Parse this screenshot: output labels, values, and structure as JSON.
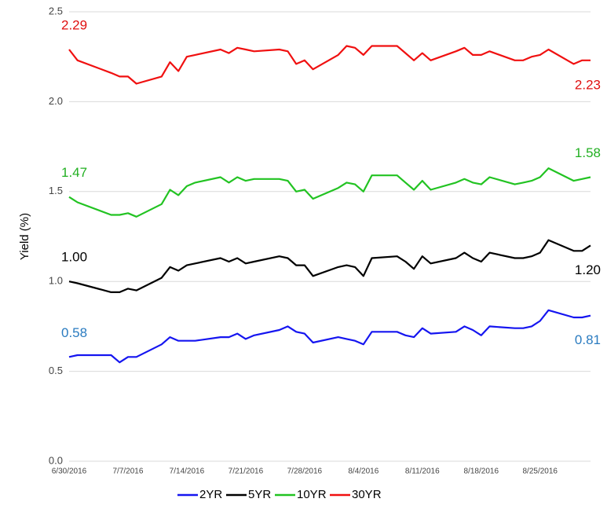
{
  "chart_data": {
    "type": "line",
    "y_label": "Yield (%)",
    "x": [
      "6/30/2016",
      "7/1/2016",
      "7/5/2016",
      "7/6/2016",
      "7/7/2016",
      "7/8/2016",
      "7/11/2016",
      "7/12/2016",
      "7/13/2016",
      "7/14/2016",
      "7/15/2016",
      "7/18/2016",
      "7/19/2016",
      "7/20/2016",
      "7/21/2016",
      "7/22/2016",
      "7/25/2016",
      "7/26/2016",
      "7/27/2016",
      "7/28/2016",
      "7/29/2016",
      "8/1/2016",
      "8/2/2016",
      "8/3/2016",
      "8/4/2016",
      "8/5/2016",
      "8/8/2016",
      "8/9/2016",
      "8/10/2016",
      "8/11/2016",
      "8/12/2016",
      "8/15/2016",
      "8/16/2016",
      "8/17/2016",
      "8/18/2016",
      "8/19/2016",
      "8/22/2016",
      "8/23/2016",
      "8/24/2016",
      "8/25/2016",
      "8/26/2016",
      "8/29/2016",
      "8/30/2016",
      "8/31/2016"
    ],
    "xlim": [
      "6/30/2016",
      "8/31/2016"
    ],
    "xticks": [
      "6/30/2016",
      "7/7/2016",
      "7/14/2016",
      "7/21/2016",
      "7/28/2016",
      "8/4/2016",
      "8/11/2016",
      "8/18/2016",
      "8/25/2016"
    ],
    "ylim": [
      0,
      2.5
    ],
    "yticks": [
      {
        "value": 0,
        "label": "0.0"
      },
      {
        "value": 0.5,
        "label": "0.5"
      },
      {
        "value": 1,
        "label": "1.0"
      },
      {
        "value": 1.5,
        "label": "1.5"
      },
      {
        "value": 2,
        "label": "2.0"
      },
      {
        "value": 2.5,
        "label": "2.5"
      }
    ],
    "grid": true,
    "legend": "bottom",
    "series": [
      {
        "name": "2YR",
        "color": "#1515f0",
        "label_color": "#2a7bc0",
        "values": [
          0.58,
          0.59,
          0.59,
          0.55,
          0.58,
          0.58,
          0.65,
          0.69,
          0.67,
          0.67,
          0.67,
          0.69,
          0.69,
          0.71,
          0.68,
          0.7,
          0.73,
          0.75,
          0.72,
          0.71,
          0.66,
          0.69,
          0.68,
          0.67,
          0.65,
          0.72,
          0.72,
          0.7,
          0.69,
          0.74,
          0.71,
          0.72,
          0.75,
          0.73,
          0.7,
          0.75,
          0.74,
          0.74,
          0.75,
          0.78,
          0.84,
          0.8,
          0.8,
          0.81
        ],
        "value_labels": [
          "0.58",
          null,
          null,
          null,
          null,
          null,
          null,
          null,
          null,
          null,
          null,
          null,
          null,
          null,
          null,
          null,
          null,
          null,
          null,
          null,
          null,
          null,
          null,
          null,
          null,
          null,
          null,
          null,
          null,
          null,
          null,
          null,
          null,
          null,
          null,
          null,
          null,
          null,
          null,
          null,
          null,
          null,
          null,
          "0.81"
        ]
      },
      {
        "name": "5YR",
        "color": "#000000",
        "label_color": "#000000",
        "values": [
          1.0,
          0.99,
          0.94,
          0.94,
          0.96,
          0.95,
          1.02,
          1.08,
          1.06,
          1.09,
          1.1,
          1.13,
          1.11,
          1.13,
          1.1,
          1.11,
          1.14,
          1.13,
          1.09,
          1.09,
          1.03,
          1.08,
          1.09,
          1.08,
          1.03,
          1.13,
          1.14,
          1.11,
          1.07,
          1.14,
          1.1,
          1.13,
          1.16,
          1.13,
          1.11,
          1.16,
          1.13,
          1.13,
          1.14,
          1.16,
          1.23,
          1.17,
          1.17,
          1.2
        ],
        "value_labels": [
          "1.00",
          null,
          null,
          null,
          null,
          null,
          null,
          null,
          null,
          null,
          null,
          null,
          null,
          null,
          null,
          null,
          null,
          null,
          null,
          null,
          null,
          null,
          null,
          null,
          null,
          null,
          null,
          null,
          null,
          null,
          null,
          null,
          null,
          null,
          null,
          null,
          null,
          null,
          null,
          null,
          null,
          null,
          null,
          "1.20"
        ]
      },
      {
        "name": "10YR",
        "color": "#22c322",
        "label_color": "#22b022",
        "values": [
          1.47,
          1.44,
          1.37,
          1.37,
          1.38,
          1.36,
          1.43,
          1.51,
          1.48,
          1.53,
          1.55,
          1.58,
          1.55,
          1.58,
          1.56,
          1.57,
          1.57,
          1.56,
          1.5,
          1.51,
          1.46,
          1.52,
          1.55,
          1.54,
          1.5,
          1.59,
          1.59,
          1.55,
          1.51,
          1.56,
          1.51,
          1.55,
          1.57,
          1.55,
          1.54,
          1.58,
          1.54,
          1.55,
          1.56,
          1.58,
          1.63,
          1.56,
          1.57,
          1.58
        ],
        "value_labels": [
          "1.47",
          null,
          null,
          null,
          null,
          null,
          null,
          null,
          null,
          null,
          null,
          null,
          null,
          null,
          null,
          null,
          null,
          null,
          null,
          null,
          null,
          null,
          null,
          null,
          null,
          null,
          null,
          null,
          null,
          null,
          null,
          null,
          null,
          null,
          null,
          null,
          null,
          null,
          null,
          null,
          null,
          null,
          null,
          "1.58"
        ]
      },
      {
        "name": "30YR",
        "color": "#f01010",
        "label_color": "#e01010",
        "values": [
          2.29,
          2.23,
          2.16,
          2.14,
          2.14,
          2.1,
          2.14,
          2.22,
          2.17,
          2.25,
          2.26,
          2.29,
          2.27,
          2.3,
          2.29,
          2.28,
          2.29,
          2.28,
          2.21,
          2.23,
          2.18,
          2.26,
          2.31,
          2.3,
          2.26,
          2.31,
          2.31,
          2.27,
          2.23,
          2.27,
          2.23,
          2.28,
          2.3,
          2.26,
          2.26,
          2.28,
          2.23,
          2.23,
          2.25,
          2.26,
          2.29,
          2.21,
          2.23,
          2.23
        ],
        "value_labels": [
          "2.29",
          null,
          null,
          null,
          null,
          null,
          null,
          null,
          null,
          null,
          null,
          null,
          null,
          null,
          null,
          null,
          null,
          null,
          null,
          null,
          null,
          null,
          null,
          null,
          null,
          null,
          null,
          null,
          null,
          null,
          null,
          null,
          null,
          null,
          null,
          null,
          null,
          null,
          null,
          null,
          null,
          null,
          null,
          "2.23"
        ]
      }
    ]
  }
}
